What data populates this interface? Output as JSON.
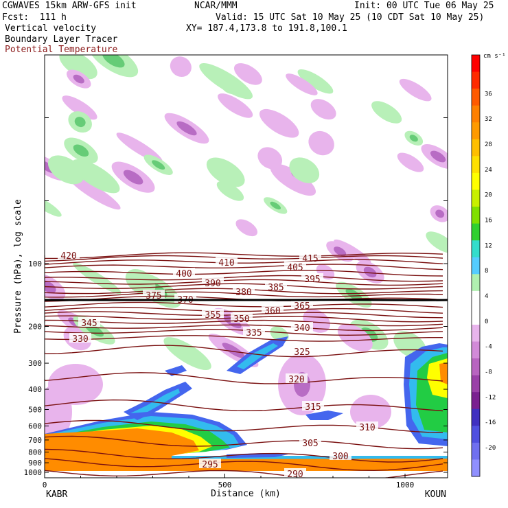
{
  "header": {
    "model": "CGWAVES 15km ARW-GFS init",
    "org": "NCAR/MMM",
    "init": "Init: 00 UTC Tue 06 May 25",
    "fcst": "Fcst:  111 h",
    "valid": "Valid: 15 UTC Sat 10 May 25 (10 CDT Sat 10 May 25)",
    "field1": "Vertical velocity",
    "xy": "XY= 187.4,173.8 to 191.8,100.1",
    "field2": "Boundary Layer Tracer",
    "field3": "Potential Temperature"
  },
  "colors": {
    "theta": "#7a1010",
    "tracer": "#ff8c00",
    "up_light": "#b8f0b8",
    "down_light": "#e8b4ec"
  },
  "chart_data": {
    "type": "cross-section",
    "ylabel": "Pressure (hPa), log scale",
    "xlabel": "Distance (km)",
    "x_ticks": [
      "0",
      "500",
      "1000"
    ],
    "y_ticks": [
      "100",
      "200",
      "300",
      "400",
      "500",
      "600",
      "700",
      "800",
      "900",
      "1000"
    ],
    "left_station": "KABR",
    "right_station": "KOUN",
    "theta_labels": [
      "420",
      "415",
      "410",
      "405",
      "400",
      "395",
      "390",
      "385",
      "380",
      "375",
      "370",
      "365",
      "360",
      "355",
      "350",
      "345",
      "340",
      "335",
      "330",
      "325",
      "320",
      "315",
      "310",
      "305",
      "300",
      "295",
      "290"
    ],
    "colorbar": {
      "units": "cm s⁻¹",
      "labels": [
        "36",
        "32",
        "28",
        "24",
        "20",
        "16",
        "12",
        "8",
        "4",
        "0",
        "-4",
        "-8",
        "-12",
        "-16",
        "-20"
      ],
      "colors": [
        "#ff0000",
        "#ff2a00",
        "#ff5a00",
        "#ff8000",
        "#ff9a00",
        "#ffbf00",
        "#ffe000",
        "#ffff00",
        "#c8f000",
        "#80e000",
        "#30d030",
        "#33ddcc",
        "#55ccff",
        "#b0f0b0",
        "#ffffff",
        "#ffffff",
        "#e8b4ec",
        "#d28ad8",
        "#b864c0",
        "#9a40a8",
        "#7a2090",
        "#4030c0",
        "#5050e0",
        "#7070f0",
        "#9090ff"
      ]
    }
  }
}
